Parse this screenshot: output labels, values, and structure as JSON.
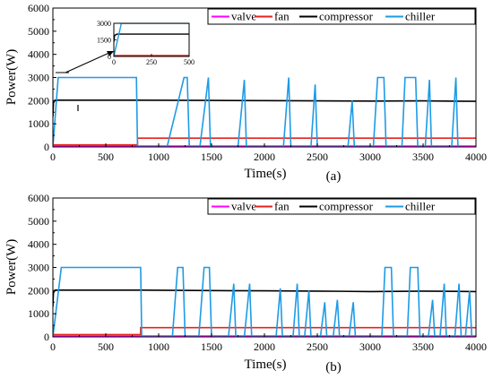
{
  "chart_data": [
    {
      "type": "line",
      "subplot_label": "(a)",
      "xlabel": "Time(s)",
      "ylabel": "Power(W)",
      "xlim": [
        0,
        4000
      ],
      "ylim": [
        0,
        6000
      ],
      "xticks": [
        0,
        500,
        1000,
        1500,
        2000,
        2500,
        3000,
        3500,
        4000
      ],
      "yticks": [
        0,
        1000,
        2000,
        3000,
        4000,
        5000,
        6000
      ],
      "grid": false,
      "legend_position": "top-right",
      "series": [
        {
          "name": "valve",
          "color": "#ff00ff",
          "x": [
            0,
            4000
          ],
          "y": [
            40,
            40
          ]
        },
        {
          "name": "fan",
          "color": "#e8221c",
          "x": [
            0,
            800,
            800,
            4000
          ],
          "y": [
            90,
            90,
            380,
            380
          ]
        },
        {
          "name": "compressor",
          "color": "#000000",
          "x": [
            0,
            5,
            20,
            800,
            1500,
            2000,
            2500,
            3000,
            3500,
            4000
          ],
          "y": [
            1300,
            1900,
            2020,
            2020,
            2010,
            2000,
            1990,
            1980,
            1990,
            1970
          ]
        },
        {
          "name": "chiller",
          "color": "#1e9be6",
          "x": [
            0,
            50,
            790,
            800,
            1080,
            1240,
            1270,
            1290,
            1390,
            1470,
            1490,
            1750,
            1810,
            1830,
            2180,
            2230,
            2250,
            2440,
            2480,
            2500,
            2790,
            2830,
            2850,
            3030,
            3070,
            3130,
            3150,
            3300,
            3330,
            3430,
            3450,
            3520,
            3560,
            3580,
            3770,
            3810,
            3830
          ],
          "y": [
            0,
            3000,
            3000,
            0,
            0,
            3000,
            3000,
            0,
            0,
            3000,
            0,
            0,
            2900,
            0,
            0,
            3000,
            0,
            0,
            2700,
            0,
            0,
            2000,
            0,
            0,
            3000,
            3000,
            0,
            0,
            3000,
            3000,
            0,
            0,
            2900,
            0,
            0,
            3000,
            0
          ]
        }
      ],
      "inset": {
        "xlim": [
          0,
          500
        ],
        "ylim": [
          0,
          3000
        ],
        "xticks": [
          0,
          250,
          500
        ],
        "yticks": [
          0,
          1500,
          3000
        ]
      }
    },
    {
      "type": "line",
      "subplot_label": "(b)",
      "xlabel": "Time(s)",
      "ylabel": "Power(W)",
      "xlim": [
        0,
        4000
      ],
      "ylim": [
        0,
        6000
      ],
      "xticks": [
        0,
        500,
        1000,
        1500,
        2000,
        2500,
        3000,
        3500,
        4000
      ],
      "yticks": [
        0,
        1000,
        2000,
        3000,
        4000,
        5000,
        6000
      ],
      "grid": false,
      "legend_position": "top-right",
      "series": [
        {
          "name": "valve",
          "color": "#ff00ff",
          "x": [
            0,
            4000
          ],
          "y": [
            40,
            40
          ]
        },
        {
          "name": "fan",
          "color": "#e8221c",
          "x": [
            0,
            830,
            830,
            4000
          ],
          "y": [
            100,
            100,
            400,
            400
          ]
        },
        {
          "name": "compressor",
          "color": "#000000",
          "x": [
            0,
            5,
            20,
            830,
            1500,
            2000,
            2500,
            3000,
            3500,
            4000
          ],
          "y": [
            1300,
            1900,
            2020,
            2020,
            2000,
            1990,
            1980,
            1960,
            1980,
            1960
          ]
        },
        {
          "name": "chiller",
          "color": "#1e9be6",
          "x": [
            0,
            80,
            830,
            840,
            1130,
            1180,
            1230,
            1250,
            1380,
            1430,
            1480,
            1500,
            1660,
            1710,
            1730,
            1810,
            1860,
            1880,
            2110,
            2150,
            2170,
            2270,
            2310,
            2330,
            2380,
            2420,
            2440,
            2530,
            2570,
            2590,
            2650,
            2690,
            2710,
            2800,
            2840,
            2860,
            3110,
            3140,
            3200,
            3220,
            3350,
            3380,
            3450,
            3470,
            3550,
            3590,
            3610,
            3660,
            3700,
            3720,
            3800,
            3840,
            3860,
            3900,
            3940,
            3960
          ],
          "y": [
            0,
            3000,
            3000,
            0,
            0,
            3000,
            3000,
            0,
            0,
            3000,
            3000,
            0,
            0,
            2300,
            0,
            0,
            2300,
            0,
            0,
            2100,
            0,
            0,
            2300,
            0,
            0,
            2000,
            0,
            0,
            1500,
            0,
            0,
            1600,
            0,
            0,
            1500,
            0,
            0,
            3000,
            3000,
            0,
            0,
            3000,
            3000,
            0,
            0,
            1600,
            0,
            0,
            2300,
            0,
            0,
            2300,
            0,
            0,
            2000,
            0
          ]
        }
      ]
    }
  ]
}
